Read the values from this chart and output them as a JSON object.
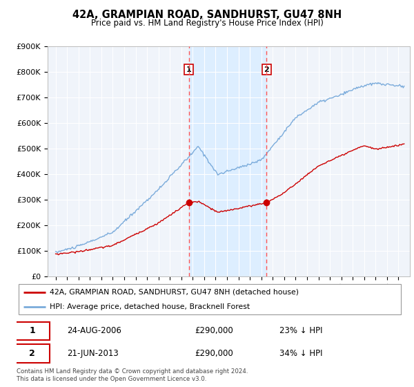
{
  "title": "42A, GRAMPIAN ROAD, SANDHURST, GU47 8NH",
  "subtitle": "Price paid vs. HM Land Registry's House Price Index (HPI)",
  "ylabel_ticks": [
    "£0",
    "£100K",
    "£200K",
    "£300K",
    "£400K",
    "£500K",
    "£600K",
    "£700K",
    "£800K",
    "£900K"
  ],
  "ytick_vals": [
    0,
    100000,
    200000,
    300000,
    400000,
    500000,
    600000,
    700000,
    800000,
    900000
  ],
  "ylim": [
    0,
    900000
  ],
  "sale1_label": "24-AUG-2006",
  "sale1_price": 290000,
  "sale1_pct": "23% ↓ HPI",
  "sale2_label": "21-JUN-2013",
  "sale2_price": 290000,
  "sale2_pct": "34% ↓ HPI",
  "sale1_x": 2006.65,
  "sale2_x": 2013.47,
  "red_color": "#cc0000",
  "blue_color": "#7aabdb",
  "shade_color": "#ddeeff",
  "vline_color": "#ff5555",
  "marker_color": "#cc0000",
  "legend_label_red": "42A, GRAMPIAN ROAD, SANDHURST, GU47 8NH (detached house)",
  "legend_label_blue": "HPI: Average price, detached house, Bracknell Forest",
  "footnote": "Contains HM Land Registry data © Crown copyright and database right 2024.\nThis data is licensed under the Open Government Licence v3.0.",
  "plot_bg_color": "#f0f4fa"
}
